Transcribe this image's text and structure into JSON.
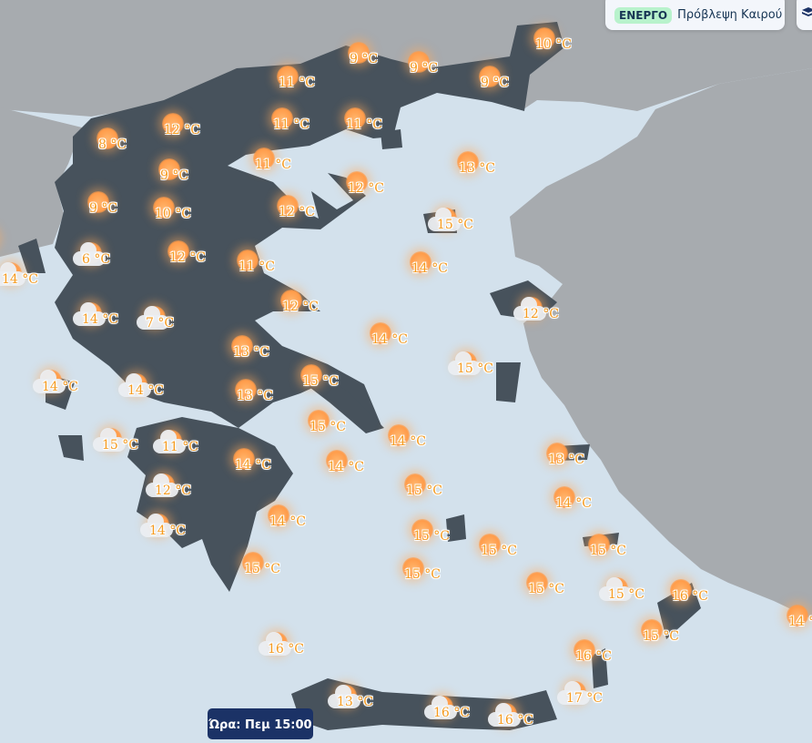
{
  "status": {
    "badge": "ΕΝΕΡΓΟ",
    "title": "Πρόβλεψη Καιρού",
    "badge_color": "#b8f2cc"
  },
  "layers_icon": "layers-icon",
  "time_label": "Ώρα: Πεμ 15:00",
  "colors": {
    "sea": "#d3e1ec",
    "greece_land": "#47525c",
    "foreign_land": "#a7abaf",
    "temp_text": "#f59a1e"
  },
  "temp_unit": "°C",
  "markers": [
    {
      "temp": "10 °C",
      "icon": "sun"
    },
    {
      "temp": "9 °C",
      "icon": "sun"
    },
    {
      "temp": "9 °C",
      "icon": "sun"
    },
    {
      "temp": "9 °C",
      "icon": "sun"
    },
    {
      "temp": "11 °C",
      "icon": "sun"
    },
    {
      "temp": "12 °C",
      "icon": "sun"
    },
    {
      "temp": "11 °C",
      "icon": "sun"
    },
    {
      "temp": "11 °C",
      "icon": "sun"
    },
    {
      "temp": "8 °C",
      "icon": "sun"
    },
    {
      "temp": "9 °C",
      "icon": "sun"
    },
    {
      "temp": "11 °C",
      "icon": "sun"
    },
    {
      "temp": "13 °C",
      "icon": "sun"
    },
    {
      "temp": "12 °C",
      "icon": "sun"
    },
    {
      "temp": "9 °C",
      "icon": "sun"
    },
    {
      "temp": "10 °C",
      "icon": "sun"
    },
    {
      "temp": "12 °C",
      "icon": "sun"
    },
    {
      "temp": "15 °C",
      "icon": "cloud"
    },
    {
      "temp": "°C",
      "icon": "sun"
    },
    {
      "temp": "6 °C",
      "icon": "cloud"
    },
    {
      "temp": "12 °C",
      "icon": "sun"
    },
    {
      "temp": "11 °C",
      "icon": "sun"
    },
    {
      "temp": "14 °C",
      "icon": "cloud"
    },
    {
      "temp": "14 °C",
      "icon": "sun"
    },
    {
      "temp": "12 °C",
      "icon": "sun"
    },
    {
      "temp": "12 °C",
      "icon": "cloud"
    },
    {
      "temp": "14 °C",
      "icon": "cloud"
    },
    {
      "temp": "7 °C",
      "icon": "cloud"
    },
    {
      "temp": "14 °C",
      "icon": "sun"
    },
    {
      "temp": "13 °C",
      "icon": "sun"
    },
    {
      "temp": "15 °C",
      "icon": "cloud"
    },
    {
      "temp": "14 °C",
      "icon": "cloud"
    },
    {
      "temp": "14 °C",
      "icon": "cloud"
    },
    {
      "temp": "13 °C",
      "icon": "sun"
    },
    {
      "temp": "15 °C",
      "icon": "sun"
    },
    {
      "temp": "15 °C",
      "icon": "sun"
    },
    {
      "temp": "15 °C",
      "icon": "cloud"
    },
    {
      "temp": "11 °C",
      "icon": "cloud"
    },
    {
      "temp": "14 °C",
      "icon": "sun"
    },
    {
      "temp": "14 °C",
      "icon": "sun"
    },
    {
      "temp": "14 °C",
      "icon": "sun"
    },
    {
      "temp": "13 °C",
      "icon": "sun"
    },
    {
      "temp": "15 °C",
      "icon": "sun"
    },
    {
      "temp": "12 °C",
      "icon": "cloud"
    },
    {
      "temp": "14 °C",
      "icon": "sun"
    },
    {
      "temp": "14 °C",
      "icon": "sun"
    },
    {
      "temp": "14 °C",
      "icon": "cloud"
    },
    {
      "temp": "15 °C",
      "icon": "sun"
    },
    {
      "temp": "15 °C",
      "icon": "sun"
    },
    {
      "temp": "15 °C",
      "icon": "sun"
    },
    {
      "temp": "15 °C",
      "icon": "sun"
    },
    {
      "temp": "15 °C",
      "icon": "sun"
    },
    {
      "temp": "15 °C",
      "icon": "sun"
    },
    {
      "temp": "15 °C",
      "icon": "cloud"
    },
    {
      "temp": "16 °C",
      "icon": "sun"
    },
    {
      "temp": "14 °C",
      "icon": "sun"
    },
    {
      "temp": "15 °C",
      "icon": "sun"
    },
    {
      "temp": "16 °C",
      "icon": "cloud"
    },
    {
      "temp": "16 °C",
      "icon": "sun"
    },
    {
      "temp": "17 °C",
      "icon": "cloud"
    },
    {
      "temp": "13 °C",
      "icon": "cloud"
    },
    {
      "temp": "16 °C",
      "icon": "cloud"
    },
    {
      "temp": "16 °C",
      "icon": "cloud"
    }
  ]
}
